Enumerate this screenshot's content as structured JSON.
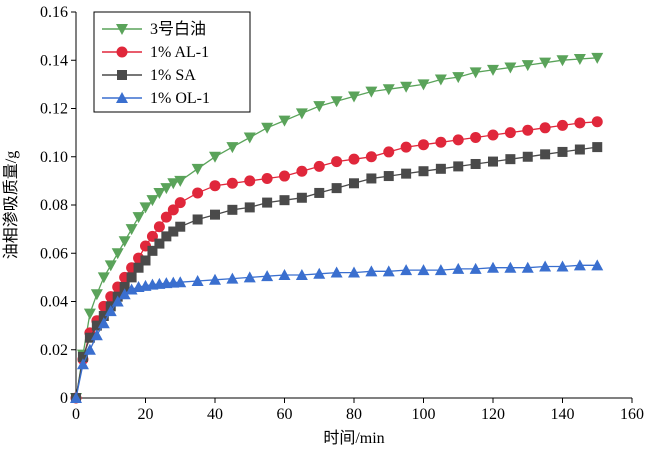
{
  "chart_data": {
    "type": "line",
    "xlabel": "时间/min",
    "ylabel": "油相渗吸质量/g",
    "xlim": [
      0,
      160
    ],
    "ylim": [
      0,
      0.16
    ],
    "xticks": [
      "0",
      "20",
      "40",
      "60",
      "80",
      "100",
      "120",
      "140",
      "160"
    ],
    "yticks": [
      "0",
      "0.02",
      "0.04",
      "0.06",
      "0.08",
      "0.10",
      "0.12",
      "0.14",
      "0.16"
    ],
    "grid": false,
    "legend_position": "top-left",
    "series": [
      {
        "name": "3号白油",
        "color": "#5aa35a",
        "marker": "triangle-down",
        "points": [
          [
            0,
            0
          ],
          [
            2,
            0.018
          ],
          [
            4,
            0.035
          ],
          [
            6,
            0.043
          ],
          [
            8,
            0.05
          ],
          [
            10,
            0.055
          ],
          [
            12,
            0.06
          ],
          [
            14,
            0.065
          ],
          [
            16,
            0.07
          ],
          [
            18,
            0.075
          ],
          [
            20,
            0.079
          ],
          [
            22,
            0.082
          ],
          [
            24,
            0.085
          ],
          [
            26,
            0.087
          ],
          [
            28,
            0.089
          ],
          [
            30,
            0.09
          ],
          [
            35,
            0.095
          ],
          [
            40,
            0.1
          ],
          [
            45,
            0.104
          ],
          [
            50,
            0.108
          ],
          [
            55,
            0.112
          ],
          [
            60,
            0.115
          ],
          [
            65,
            0.118
          ],
          [
            70,
            0.121
          ],
          [
            75,
            0.123
          ],
          [
            80,
            0.125
          ],
          [
            85,
            0.127
          ],
          [
            90,
            0.128
          ],
          [
            95,
            0.129
          ],
          [
            100,
            0.13
          ],
          [
            105,
            0.132
          ],
          [
            110,
            0.133
          ],
          [
            115,
            0.135
          ],
          [
            120,
            0.136
          ],
          [
            125,
            0.137
          ],
          [
            130,
            0.138
          ],
          [
            135,
            0.139
          ],
          [
            140,
            0.14
          ],
          [
            145,
            0.1405
          ],
          [
            150,
            0.141
          ]
        ]
      },
      {
        "name": "1% AL-1",
        "color": "#e0273b",
        "marker": "circle",
        "points": [
          [
            0,
            0
          ],
          [
            2,
            0.016
          ],
          [
            4,
            0.027
          ],
          [
            6,
            0.032
          ],
          [
            8,
            0.038
          ],
          [
            10,
            0.042
          ],
          [
            12,
            0.046
          ],
          [
            14,
            0.05
          ],
          [
            16,
            0.054
          ],
          [
            18,
            0.058
          ],
          [
            20,
            0.063
          ],
          [
            22,
            0.067
          ],
          [
            24,
            0.071
          ],
          [
            26,
            0.075
          ],
          [
            28,
            0.078
          ],
          [
            30,
            0.081
          ],
          [
            35,
            0.085
          ],
          [
            40,
            0.088
          ],
          [
            45,
            0.089
          ],
          [
            50,
            0.09
          ],
          [
            55,
            0.091
          ],
          [
            60,
            0.092
          ],
          [
            65,
            0.094
          ],
          [
            70,
            0.096
          ],
          [
            75,
            0.098
          ],
          [
            80,
            0.099
          ],
          [
            85,
            0.1
          ],
          [
            90,
            0.102
          ],
          [
            95,
            0.104
          ],
          [
            100,
            0.105
          ],
          [
            105,
            0.106
          ],
          [
            110,
            0.107
          ],
          [
            115,
            0.108
          ],
          [
            120,
            0.109
          ],
          [
            125,
            0.11
          ],
          [
            130,
            0.111
          ],
          [
            135,
            0.112
          ],
          [
            140,
            0.113
          ],
          [
            145,
            0.114
          ],
          [
            150,
            0.1145
          ]
        ]
      },
      {
        "name": "1% SA",
        "color": "#4a4a4a",
        "marker": "square",
        "points": [
          [
            0,
            0
          ],
          [
            2,
            0.017
          ],
          [
            4,
            0.025
          ],
          [
            6,
            0.03
          ],
          [
            8,
            0.034
          ],
          [
            10,
            0.038
          ],
          [
            12,
            0.042
          ],
          [
            14,
            0.046
          ],
          [
            16,
            0.05
          ],
          [
            18,
            0.054
          ],
          [
            20,
            0.057
          ],
          [
            22,
            0.061
          ],
          [
            24,
            0.064
          ],
          [
            26,
            0.067
          ],
          [
            28,
            0.069
          ],
          [
            30,
            0.071
          ],
          [
            35,
            0.074
          ],
          [
            40,
            0.076
          ],
          [
            45,
            0.078
          ],
          [
            50,
            0.079
          ],
          [
            55,
            0.081
          ],
          [
            60,
            0.082
          ],
          [
            65,
            0.083
          ],
          [
            70,
            0.085
          ],
          [
            75,
            0.087
          ],
          [
            80,
            0.089
          ],
          [
            85,
            0.091
          ],
          [
            90,
            0.092
          ],
          [
            95,
            0.093
          ],
          [
            100,
            0.094
          ],
          [
            105,
            0.095
          ],
          [
            110,
            0.096
          ],
          [
            115,
            0.097
          ],
          [
            120,
            0.098
          ],
          [
            125,
            0.099
          ],
          [
            130,
            0.1
          ],
          [
            135,
            0.101
          ],
          [
            140,
            0.102
          ],
          [
            145,
            0.103
          ],
          [
            150,
            0.104
          ]
        ]
      },
      {
        "name": "1% OL-1",
        "color": "#3a6fcf",
        "marker": "triangle-up",
        "points": [
          [
            0,
            0
          ],
          [
            2,
            0.014
          ],
          [
            4,
            0.02
          ],
          [
            6,
            0.026
          ],
          [
            8,
            0.031
          ],
          [
            10,
            0.036
          ],
          [
            12,
            0.04
          ],
          [
            14,
            0.043
          ],
          [
            16,
            0.045
          ],
          [
            18,
            0.046
          ],
          [
            20,
            0.0465
          ],
          [
            22,
            0.047
          ],
          [
            24,
            0.0473
          ],
          [
            26,
            0.0476
          ],
          [
            28,
            0.0478
          ],
          [
            30,
            0.048
          ],
          [
            35,
            0.0485
          ],
          [
            40,
            0.049
          ],
          [
            45,
            0.0495
          ],
          [
            50,
            0.05
          ],
          [
            55,
            0.0505
          ],
          [
            60,
            0.051
          ],
          [
            65,
            0.051
          ],
          [
            70,
            0.0515
          ],
          [
            75,
            0.052
          ],
          [
            80,
            0.052
          ],
          [
            85,
            0.0525
          ],
          [
            90,
            0.0525
          ],
          [
            95,
            0.053
          ],
          [
            100,
            0.053
          ],
          [
            105,
            0.053
          ],
          [
            110,
            0.0535
          ],
          [
            115,
            0.0535
          ],
          [
            120,
            0.054
          ],
          [
            125,
            0.054
          ],
          [
            130,
            0.054
          ],
          [
            135,
            0.0545
          ],
          [
            140,
            0.0545
          ],
          [
            145,
            0.055
          ],
          [
            150,
            0.055
          ]
        ]
      }
    ]
  }
}
